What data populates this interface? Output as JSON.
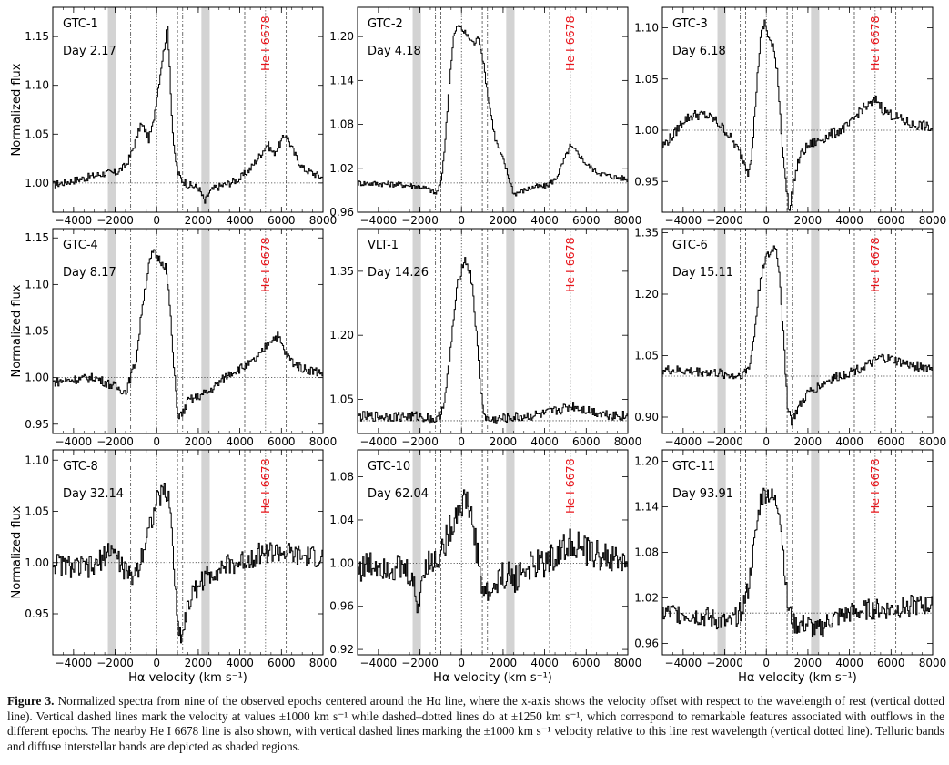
{
  "figure": {
    "ylabel": "Normalized flux",
    "xlabel": "Hα velocity (km s⁻¹)",
    "he_label": "He I 6678",
    "xlim": [
      -5000,
      8000
    ],
    "xticks": [
      -4000,
      -2000,
      0,
      2000,
      4000,
      6000,
      8000
    ],
    "guide_lines": {
      "rest_dotted": [
        0,
        5235
      ],
      "dashed_1000": [
        -1000,
        1000,
        4235,
        6235
      ],
      "dashdot_1250": [
        -1250,
        1250
      ]
    },
    "shaded_bands": [
      [
        -2350,
        -1950
      ],
      [
        2150,
        2550
      ]
    ],
    "colors": {
      "line": "#000000",
      "band": "#d3d3d3",
      "he_label": "#e8151b"
    }
  },
  "chart_data": [
    {
      "type": "line",
      "panel": "GTC-1",
      "label": "GTC-1",
      "day": "Day 2.17",
      "xlim": [
        -5000,
        8000
      ],
      "ylim": [
        0.97,
        1.18
      ],
      "yticks": [
        "1.00",
        "1.05",
        "1.10",
        "1.15"
      ],
      "noise": 0.004,
      "x": [
        -5000,
        -3500,
        -2500,
        -2000,
        -1500,
        -1250,
        -1000,
        -800,
        -600,
        -400,
        -200,
        0,
        200,
        350,
        500,
        600,
        700,
        800,
        1000,
        1200,
        1500,
        2000,
        2300,
        2500,
        2800,
        3500,
        4000,
        4500,
        5000,
        5300,
        5600,
        5900,
        6200,
        6600,
        7000,
        7500,
        8000
      ],
      "y": [
        0.998,
        1.005,
        1.01,
        1.01,
        1.018,
        1.03,
        1.045,
        1.06,
        1.055,
        1.045,
        1.06,
        1.09,
        1.12,
        1.14,
        1.16,
        1.12,
        1.07,
        1.035,
        1.01,
        1.003,
        0.998,
        0.995,
        0.98,
        0.99,
        0.995,
        1.0,
        1.005,
        1.015,
        1.03,
        1.04,
        1.03,
        1.04,
        1.05,
        1.03,
        1.015,
        1.01,
        1.005
      ]
    },
    {
      "type": "line",
      "panel": "GTC-2",
      "label": "GTC-2",
      "day": "Day 4.18",
      "xlim": [
        -5000,
        8000
      ],
      "ylim": [
        0.96,
        1.24
      ],
      "yticks": [
        "0.96",
        "1.02",
        "1.08",
        "1.14",
        "1.20"
      ],
      "noise": 0.004,
      "x": [
        -5000,
        -3000,
        -2000,
        -1500,
        -1250,
        -1000,
        -800,
        -600,
        -400,
        -200,
        0,
        300,
        600,
        800,
        1000,
        1300,
        1600,
        2000,
        2500,
        3000,
        3500,
        4000,
        4500,
        4900,
        5200,
        5600,
        6000,
        6500,
        7000,
        8000
      ],
      "y": [
        1.0,
        0.998,
        0.995,
        0.99,
        0.985,
        1.0,
        1.06,
        1.14,
        1.2,
        1.215,
        1.21,
        1.2,
        1.19,
        1.2,
        1.17,
        1.11,
        1.06,
        1.03,
        0.985,
        0.99,
        0.995,
        0.995,
        1.005,
        1.03,
        1.05,
        1.04,
        1.025,
        1.015,
        1.01,
        1.005
      ]
    },
    {
      "type": "line",
      "panel": "GTC-3",
      "label": "GTC-3",
      "day": "Day 6.18",
      "xlim": [
        -5000,
        8000
      ],
      "ylim": [
        0.92,
        1.12
      ],
      "yticks": [
        "0.95",
        "1.00",
        "1.05",
        "1.10"
      ],
      "noise": 0.005,
      "x": [
        -5000,
        -4500,
        -4000,
        -3500,
        -3000,
        -2500,
        -2000,
        -1500,
        -1100,
        -900,
        -700,
        -500,
        -300,
        -100,
        100,
        300,
        500,
        700,
        900,
        1100,
        1300,
        1600,
        2000,
        2500,
        3000,
        3500,
        4000,
        4500,
        5000,
        5300,
        5600,
        6000,
        6500,
        7000,
        7500,
        8000
      ],
      "y": [
        0.985,
        0.995,
        1.01,
        1.015,
        1.015,
        1.01,
        1.0,
        0.985,
        0.97,
        0.96,
        0.98,
        1.04,
        1.09,
        1.105,
        1.09,
        1.08,
        1.06,
        1.0,
        0.95,
        0.92,
        0.95,
        0.975,
        0.985,
        0.99,
        0.995,
        1.0,
        1.005,
        1.02,
        1.025,
        1.03,
        1.02,
        1.015,
        1.01,
        1.005,
        1.005,
        1.0
      ]
    },
    {
      "type": "line",
      "panel": "GTC-4",
      "label": "GTC-4",
      "day": "Day 8.17",
      "xlim": [
        -5000,
        8000
      ],
      "ylim": [
        0.94,
        1.16
      ],
      "yticks": [
        "0.95",
        "1.00",
        "1.05",
        "1.10",
        "1.15"
      ],
      "noise": 0.005,
      "x": [
        -5000,
        -4000,
        -3000,
        -2500,
        -2000,
        -1500,
        -1000,
        -700,
        -400,
        -200,
        0,
        200,
        400,
        600,
        800,
        1000,
        1200,
        1500,
        2000,
        2500,
        3000,
        3500,
        4000,
        4500,
        5000,
        5400,
        5800,
        6200,
        6600,
        7000,
        8000
      ],
      "y": [
        0.995,
        0.998,
        1.0,
        0.995,
        0.99,
        0.985,
        1.02,
        1.08,
        1.12,
        1.135,
        1.13,
        1.125,
        1.12,
        1.08,
        1.01,
        0.96,
        0.96,
        0.975,
        0.98,
        0.985,
        0.995,
        1.005,
        1.01,
        1.015,
        1.025,
        1.04,
        1.045,
        1.025,
        1.015,
        1.01,
        1.005
      ]
    },
    {
      "type": "line",
      "panel": "VLT-1",
      "label": "VLT-1",
      "day": "Day 14.26",
      "xlim": [
        -5000,
        8000
      ],
      "ylim": [
        0.97,
        1.45
      ],
      "yticks": [
        "1.05",
        "1.20",
        "1.35"
      ],
      "noise": 0.012,
      "x": [
        -5000,
        -3000,
        -2000,
        -1500,
        -1200,
        -1000,
        -800,
        -600,
        -400,
        -200,
        0,
        100,
        300,
        500,
        700,
        900,
        1100,
        1300,
        2000,
        3000,
        4000,
        5000,
        5300,
        6000,
        7000,
        8000
      ],
      "y": [
        1.01,
        1.01,
        1.01,
        1.005,
        1.0,
        1.02,
        1.06,
        1.14,
        1.24,
        1.32,
        1.36,
        1.38,
        1.36,
        1.32,
        1.2,
        1.07,
        1.01,
        1.0,
        1.005,
        1.01,
        1.015,
        1.03,
        1.035,
        1.025,
        1.015,
        1.01
      ]
    },
    {
      "type": "line",
      "panel": "GTC-6",
      "label": "GTC-6",
      "day": "Day 15.11",
      "xlim": [
        -5000,
        8000
      ],
      "ylim": [
        0.86,
        1.36
      ],
      "yticks": [
        "0.90",
        "1.05",
        "1.20",
        "1.35"
      ],
      "noise": 0.012,
      "x": [
        -5000,
        -3000,
        -2000,
        -1500,
        -1000,
        -800,
        -600,
        -400,
        -200,
        0,
        200,
        400,
        600,
        800,
        1000,
        1200,
        1500,
        2000,
        3000,
        4000,
        5000,
        5500,
        6000,
        7000,
        8000
      ],
      "y": [
        1.015,
        1.01,
        1.005,
        1.0,
        1.01,
        1.03,
        1.1,
        1.2,
        1.27,
        1.29,
        1.3,
        1.32,
        1.26,
        1.1,
        0.93,
        0.89,
        0.92,
        0.96,
        0.99,
        1.01,
        1.03,
        1.045,
        1.04,
        1.025,
        1.02
      ]
    },
    {
      "type": "line",
      "panel": "GTC-8",
      "label": "GTC-8",
      "day": "Day 32.14",
      "xlim": [
        -5000,
        8000
      ],
      "ylim": [
        0.91,
        1.11
      ],
      "yticks": [
        "0.95",
        "1.00",
        "1.05",
        "1.10"
      ],
      "noise": 0.011,
      "x": [
        -5000,
        -4000,
        -3000,
        -2200,
        -1800,
        -1300,
        -900,
        -600,
        -300,
        0,
        300,
        600,
        800,
        1000,
        1200,
        1500,
        2000,
        3000,
        4000,
        5000,
        6000,
        7000,
        8000
      ],
      "y": [
        1.0,
        0.995,
        0.995,
        1.015,
        1.0,
        0.985,
        0.995,
        1.02,
        1.04,
        1.06,
        1.07,
        1.06,
        1.0,
        0.935,
        0.93,
        0.96,
        0.98,
        0.995,
        1.0,
        1.01,
        1.01,
        1.005,
        1.005
      ]
    },
    {
      "type": "line",
      "panel": "GTC-10",
      "label": "GTC-10",
      "day": "Day 62.04",
      "xlim": [
        -5000,
        8000
      ],
      "ylim": [
        0.915,
        1.105
      ],
      "yticks": [
        "0.92",
        "0.96",
        "1.00",
        "1.04",
        "1.08"
      ],
      "noise": 0.014,
      "x": [
        -5000,
        -4000,
        -3000,
        -2500,
        -2100,
        -1800,
        -1400,
        -1000,
        -600,
        -200,
        200,
        500,
        800,
        1000,
        1300,
        2000,
        2500,
        3000,
        4000,
        5000,
        5300,
        6000,
        7000,
        8000
      ],
      "y": [
        0.995,
        1.0,
        0.995,
        0.99,
        0.96,
        1.0,
        1.0,
        1.01,
        1.03,
        1.05,
        1.06,
        1.04,
        1.0,
        0.975,
        0.97,
        0.99,
        0.985,
        0.995,
        1.0,
        1.015,
        1.02,
        1.01,
        1.005,
        1.0
      ]
    },
    {
      "type": "line",
      "panel": "GTC-11",
      "label": "GTC-11",
      "day": "Day 93.91",
      "xlim": [
        -5000,
        8000
      ],
      "ylim": [
        0.945,
        1.215
      ],
      "yticks": [
        "0.96",
        "1.02",
        "1.08",
        "1.14",
        "1.20"
      ],
      "noise": 0.014,
      "x": [
        -5000,
        -4000,
        -3000,
        -2300,
        -1800,
        -1300,
        -900,
        -600,
        -300,
        0,
        300,
        600,
        800,
        1000,
        1300,
        2000,
        2400,
        3000,
        4000,
        5000,
        6000,
        7000,
        8000
      ],
      "y": [
        1.0,
        1.0,
        0.995,
        0.99,
        0.985,
        1.0,
        1.03,
        1.09,
        1.15,
        1.16,
        1.15,
        1.14,
        1.08,
        1.01,
        0.985,
        0.985,
        0.975,
        0.99,
        1.0,
        1.005,
        1.005,
        1.01,
        1.01
      ]
    }
  ],
  "caption": {
    "label": "Figure 3.",
    "text": "Normalized spectra from nine of the observed epochs centered around the Hα line, where the x-axis shows the velocity offset with respect to the wavelength of rest (vertical dotted line). Vertical dashed lines mark the velocity at values ±1000 km s⁻¹ while dashed–dotted lines do at ±1250 km s⁻¹, which correspond to remarkable features associated with outflows in the different epochs. The nearby He I 6678 line is also shown, with vertical dashed lines marking the ±1000 km s⁻¹ velocity relative to this line rest wavelength (vertical dotted line). Telluric bands and diffuse interstellar bands are depicted as shaded regions."
  }
}
